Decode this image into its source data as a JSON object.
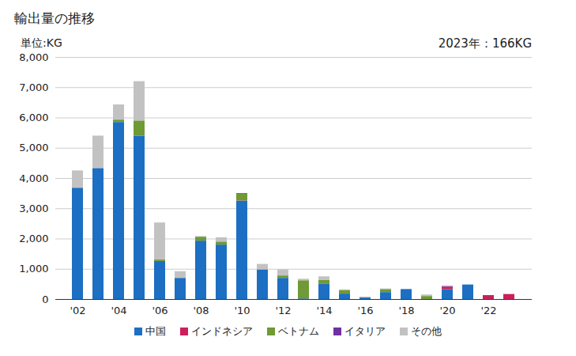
{
  "chart_data": {
    "type": "bar",
    "title": "輸出量の推移",
    "ylabel": "単位:KG",
    "annotation": "2023年：166KG",
    "stacked": true,
    "grid": true,
    "legend": "bottom",
    "categories": [
      "'02",
      null,
      "'04",
      null,
      "'06",
      null,
      "'08",
      null,
      "'10",
      null,
      "'12",
      null,
      "'14",
      null,
      "'16",
      null,
      "'18",
      null,
      "'20",
      null,
      "'22",
      null
    ],
    "series": [
      {
        "name": "中国",
        "color": "#1c6fc2",
        "values": [
          3680,
          4330,
          5850,
          5400,
          1230,
          700,
          1930,
          1800,
          3250,
          980,
          700,
          20,
          500,
          180,
          50,
          230,
          330,
          0,
          330,
          480,
          0,
          0
        ]
      },
      {
        "name": "インドネシア",
        "color": "#cc1f5c",
        "values": [
          0,
          0,
          0,
          0,
          30,
          0,
          0,
          0,
          10,
          0,
          0,
          0,
          0,
          0,
          0,
          0,
          0,
          0,
          80,
          0,
          130,
          166
        ]
      },
      {
        "name": "ベトナム",
        "color": "#6f9a35",
        "values": [
          0,
          0,
          80,
          500,
          50,
          0,
          130,
          100,
          220,
          0,
          80,
          600,
          130,
          120,
          0,
          100,
          0,
          100,
          0,
          0,
          0,
          0
        ]
      },
      {
        "name": "イタリア",
        "color": "#7030a0",
        "values": [
          0,
          0,
          0,
          0,
          0,
          0,
          0,
          0,
          20,
          0,
          0,
          0,
          0,
          0,
          0,
          0,
          0,
          0,
          20,
          0,
          0,
          0
        ]
      },
      {
        "name": "その他",
        "color": "#c2c2c2",
        "values": [
          570,
          1070,
          500,
          1300,
          1220,
          220,
          20,
          140,
          0,
          180,
          200,
          50,
          120,
          20,
          30,
          20,
          0,
          50,
          0,
          0,
          0,
          0
        ]
      }
    ],
    "ylim": [
      0,
      8000
    ],
    "yticks": [
      0,
      {
        "value": 1000,
        "label": "1,000"
      },
      {
        "value": 2000,
        "label": "2,000"
      },
      {
        "value": 3000,
        "label": "3,000"
      },
      {
        "value": 4000,
        "label": "4,000"
      },
      {
        "value": 5000,
        "label": "5,000"
      },
      {
        "value": 6000,
        "label": "6,000"
      },
      {
        "value": 7000,
        "label": "7,000"
      },
      {
        "value": 8000,
        "label": "8,000"
      }
    ]
  }
}
